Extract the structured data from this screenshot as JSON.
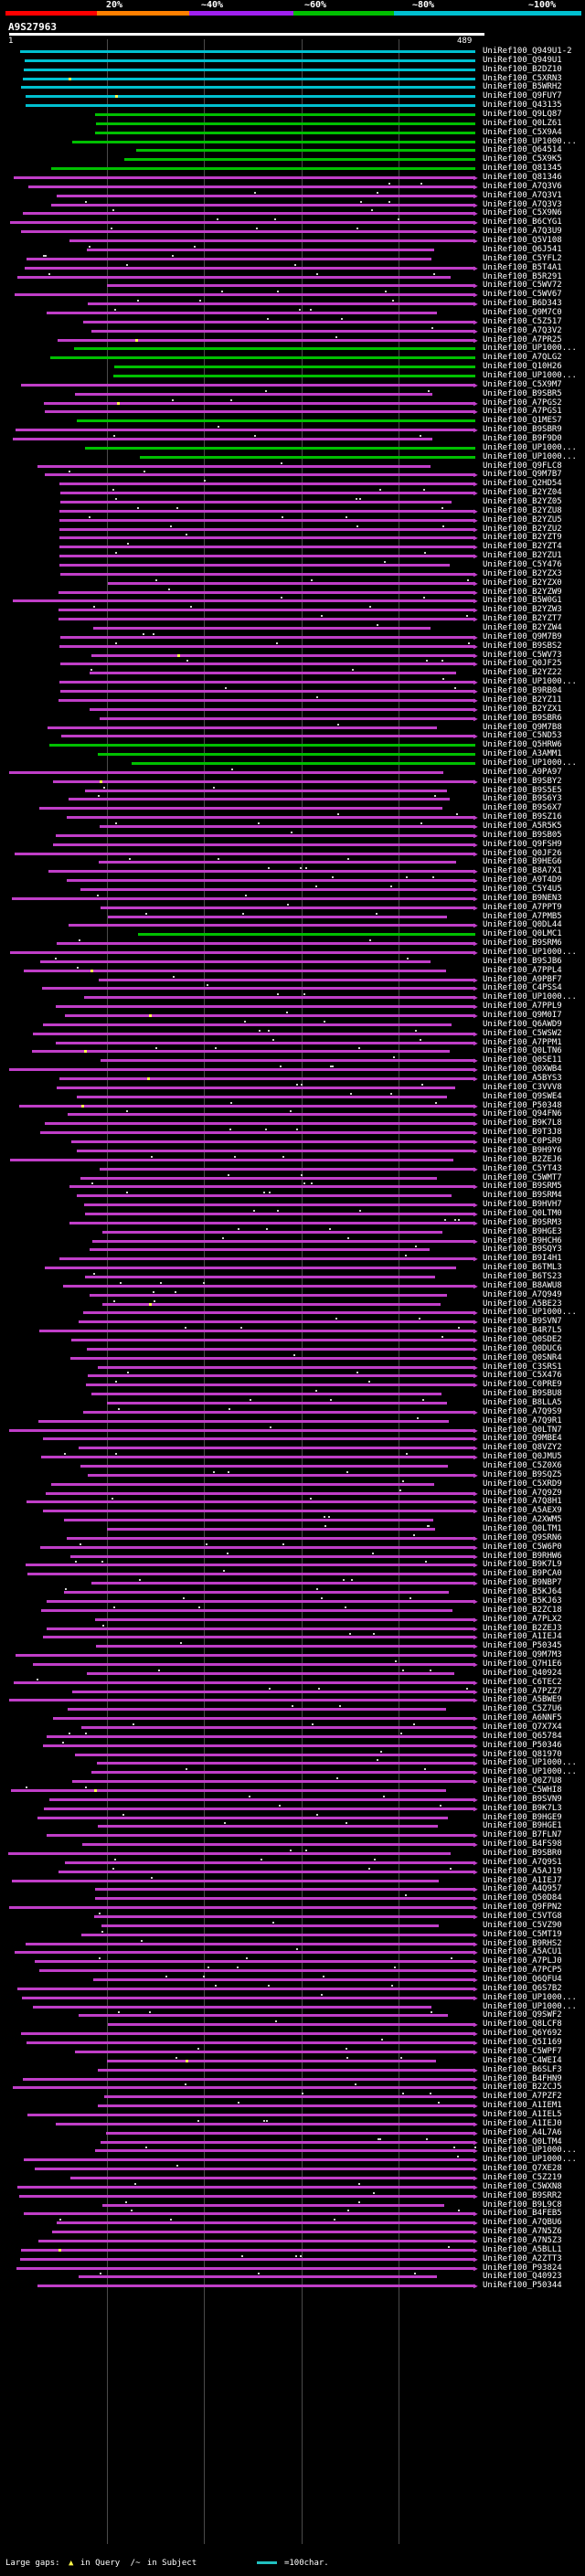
{
  "percent_labels": [
    "20%",
    "~40%",
    "~60%",
    "~80%",
    "~100%"
  ],
  "segment_colors": [
    "#ff0000",
    "#ff8000",
    "#a020f0",
    "#00c000",
    "#00c0d0"
  ],
  "header": {
    "query_id": "A9S27963",
    "scale_start": "1",
    "scale_end": "489"
  },
  "legend": {
    "large_gaps_label": "Large gaps:",
    "query_gap": "in Query",
    "subject_gap": "in Subject",
    "scale_label": "=100char."
  },
  "hits": [
    {
      "id": "UniRef100_Q949U1-2",
      "c": "cyan"
    },
    {
      "id": "UniRef100_Q949U1",
      "c": "cyan"
    },
    {
      "id": "UniRef100_B2DZ10",
      "c": "cyan"
    },
    {
      "id": "UniRef100_C5XRN3",
      "c": "cyan"
    },
    {
      "id": "UniRef100_B5WRH2",
      "c": "cyan"
    },
    {
      "id": "UniRef100_Q9FUY7",
      "c": "cyan"
    },
    {
      "id": "UniRef100_Q43135",
      "c": "cyan"
    },
    {
      "id": "UniRef100_Q9LQ87",
      "c": "green"
    },
    {
      "id": "UniRef100_Q0LZ61",
      "c": "green"
    },
    {
      "id": "UniRef100_C5X9A4",
      "c": "green"
    },
    {
      "id": "UniRef100_UP1000...",
      "c": "green"
    },
    {
      "id": "UniRef100_Q64514",
      "c": "green"
    },
    {
      "id": "UniRef100_C5X9K5",
      "c": "green"
    },
    {
      "id": "UniRef100_Q81345",
      "c": "green"
    },
    {
      "id": "UniRef100_Q81346",
      "c": "magenta"
    },
    {
      "id": "UniRef100_A7Q3V6",
      "c": "magenta"
    },
    {
      "id": "UniRef100_A7Q3V1",
      "c": "magenta"
    },
    {
      "id": "UniRef100_A7Q3V3",
      "c": "magenta"
    },
    {
      "id": "UniRef100_C5X9N6",
      "c": "magenta"
    },
    {
      "id": "UniRef100_B6CYG1",
      "c": "magenta"
    },
    {
      "id": "UniRef100_A7Q3U9",
      "c": "magenta"
    },
    {
      "id": "UniRef100_Q5V108",
      "c": "magenta"
    },
    {
      "id": "UniRef100_Q6J541",
      "c": "magenta"
    },
    {
      "id": "UniRef100_C5YFL2",
      "c": "magenta"
    },
    {
      "id": "UniRef100_B5T4A1",
      "c": "magenta"
    },
    {
      "id": "UniRef100_B5R291",
      "c": "magenta"
    },
    {
      "id": "UniRef100_C5WV72",
      "c": "magenta"
    },
    {
      "id": "UniRef100_C5WV67",
      "c": "magenta"
    },
    {
      "id": "UniRef100_B6D343",
      "c": "magenta"
    },
    {
      "id": "UniRef100_Q9M7C0",
      "c": "magenta"
    },
    {
      "id": "UniRef100_C5Z517",
      "c": "magenta"
    },
    {
      "id": "UniRef100_A7Q3V2",
      "c": "magenta"
    },
    {
      "id": "UniRef100_A7PR25",
      "c": "magenta"
    },
    {
      "id": "UniRef100_UP1000...",
      "c": "green"
    },
    {
      "id": "UniRef100_A7QLG2",
      "c": "green"
    },
    {
      "id": "UniRef100_Q10H26",
      "c": "green"
    },
    {
      "id": "UniRef100_UP1000...",
      "c": "green"
    },
    {
      "id": "UniRef100_C5X9M7",
      "c": "magenta"
    },
    {
      "id": "UniRef100_B9SBR5",
      "c": "magenta"
    },
    {
      "id": "UniRef100_A7PGS2",
      "c": "magenta"
    },
    {
      "id": "UniRef100_A7PGS1",
      "c": "magenta"
    },
    {
      "id": "UniRef100_Q1MES7",
      "c": "green"
    },
    {
      "id": "UniRef100_B9SBR9",
      "c": "magenta"
    },
    {
      "id": "UniRef100_B9F9D0",
      "c": "magenta"
    },
    {
      "id": "UniRef100_UP1000...",
      "c": "green"
    },
    {
      "id": "UniRef100_UP1000...",
      "c": "green"
    },
    {
      "id": "UniRef100_Q9FLC8",
      "c": "magenta"
    },
    {
      "id": "UniRef100_Q9M7B7",
      "c": "magenta"
    },
    {
      "id": "UniRef100_Q2HD54",
      "c": "magenta"
    },
    {
      "id": "UniRef100_B2YZ04",
      "c": "magenta"
    },
    {
      "id": "UniRef100_B2YZ05",
      "c": "magenta"
    },
    {
      "id": "UniRef100_B2YZU8",
      "c": "magenta"
    },
    {
      "id": "UniRef100_B2YZU5",
      "c": "magenta"
    },
    {
      "id": "UniRef100_B2YZU2",
      "c": "magenta"
    },
    {
      "id": "UniRef100_B2YZT9",
      "c": "magenta"
    },
    {
      "id": "UniRef100_B2YZT4",
      "c": "magenta"
    },
    {
      "id": "UniRef100_B2YZU1",
      "c": "magenta"
    },
    {
      "id": "UniRef100_C5Y476",
      "c": "magenta"
    },
    {
      "id": "UniRef100_B2YZX3",
      "c": "magenta"
    },
    {
      "id": "UniRef100_B2YZX0",
      "c": "magenta"
    },
    {
      "id": "UniRef100_B2YZW9",
      "c": "magenta"
    },
    {
      "id": "UniRef100_B5W0G1",
      "c": "magenta"
    },
    {
      "id": "UniRef100_B2YZW3",
      "c": "magenta"
    },
    {
      "id": "UniRef100_B2YZT7",
      "c": "magenta"
    },
    {
      "id": "UniRef100_B2YZW4",
      "c": "magenta"
    },
    {
      "id": "UniRef100_Q9M7B9",
      "c": "magenta"
    },
    {
      "id": "UniRef100_B9SBS2",
      "c": "magenta"
    },
    {
      "id": "UniRef100_C5WV73",
      "c": "magenta"
    },
    {
      "id": "UniRef100_Q0JF25",
      "c": "magenta"
    },
    {
      "id": "UniRef100_B2YZ22",
      "c": "magenta"
    },
    {
      "id": "UniRef100_UP1000...",
      "c": "magenta"
    },
    {
      "id": "UniRef100_B9RB04",
      "c": "magenta"
    },
    {
      "id": "UniRef100_B2YZ11",
      "c": "magenta"
    },
    {
      "id": "UniRef100_B2YZX1",
      "c": "magenta"
    },
    {
      "id": "UniRef100_B9SBR6",
      "c": "magenta"
    },
    {
      "id": "UniRef100_Q9M7B8",
      "c": "magenta"
    },
    {
      "id": "UniRef100_C5ND53",
      "c": "magenta"
    },
    {
      "id": "UniRef100_Q5HRW6",
      "c": "green"
    },
    {
      "id": "UniRef100_A3AMM1",
      "c": "green"
    },
    {
      "id": "UniRef100_UP1000...",
      "c": "green"
    },
    {
      "id": "UniRef100_A9PA97",
      "c": "magenta"
    },
    {
      "id": "UniRef100_B9SBY2",
      "c": "magenta"
    },
    {
      "id": "UniRef100_B9S5E5",
      "c": "magenta"
    },
    {
      "id": "UniRef100_B9S6Y3",
      "c": "magenta"
    },
    {
      "id": "UniRef100_B9S6X7",
      "c": "magenta"
    },
    {
      "id": "UniRef100_B9SZ16",
      "c": "magenta"
    },
    {
      "id": "UniRef100_A5R5K5",
      "c": "magenta"
    },
    {
      "id": "UniRef100_B9SB05",
      "c": "magenta"
    },
    {
      "id": "UniRef100_Q9FSH9",
      "c": "magenta"
    },
    {
      "id": "UniRef100_Q0JF26",
      "c": "magenta"
    },
    {
      "id": "UniRef100_B9HEG6",
      "c": "magenta"
    },
    {
      "id": "UniRef100_B8A7X1",
      "c": "magenta"
    },
    {
      "id": "UniRef100_A9T4D9",
      "c": "magenta"
    },
    {
      "id": "UniRef100_C5Y4U5",
      "c": "magenta"
    },
    {
      "id": "UniRef100_B9NEN3",
      "c": "magenta"
    },
    {
      "id": "UniRef100_A7PPT9",
      "c": "magenta"
    },
    {
      "id": "UniRef100_A7PMB5",
      "c": "magenta"
    },
    {
      "id": "UniRef100_Q0DL44",
      "c": "magenta"
    },
    {
      "id": "UniRef100_Q0LMC1",
      "c": "green"
    },
    {
      "id": "UniRef100_B9SRM6",
      "c": "magenta"
    },
    {
      "id": "UniRef100_UP1000...",
      "c": "magenta"
    },
    {
      "id": "UniRef100_B9SJB6",
      "c": "magenta"
    },
    {
      "id": "UniRef100_A7PPL4",
      "c": "magenta"
    },
    {
      "id": "UniRef100_A9PBF7",
      "c": "magenta"
    },
    {
      "id": "UniRef100_C4PSS4",
      "c": "magenta"
    },
    {
      "id": "UniRef100_UP1000...",
      "c": "magenta"
    },
    {
      "id": "UniRef100_A7PPL9",
      "c": "magenta"
    },
    {
      "id": "UniRef100_Q9M0I7",
      "c": "magenta"
    },
    {
      "id": "UniRef100_Q6AWD9",
      "c": "magenta"
    },
    {
      "id": "UniRef100_C5WSW2",
      "c": "magenta"
    },
    {
      "id": "UniRef100_A7PPM1",
      "c": "magenta"
    },
    {
      "id": "UniRef100_Q0LTN6",
      "c": "magenta"
    },
    {
      "id": "UniRef100_Q0SE11",
      "c": "magenta"
    },
    {
      "id": "UniRef100_Q0XWB4",
      "c": "magenta"
    },
    {
      "id": "UniRef100_A5BYS3",
      "c": "magenta"
    },
    {
      "id": "UniRef100_C3VVV8",
      "c": "magenta"
    },
    {
      "id": "UniRef100_Q9SWE4",
      "c": "magenta"
    },
    {
      "id": "UniRef100_P50348",
      "c": "magenta"
    },
    {
      "id": "UniRef100_Q94FN6",
      "c": "magenta"
    },
    {
      "id": "UniRef100_B9K7L8",
      "c": "magenta"
    },
    {
      "id": "UniRef100_B9T3J8",
      "c": "magenta"
    },
    {
      "id": "UniRef100_C0PSR9",
      "c": "magenta"
    },
    {
      "id": "UniRef100_B9H9Y6",
      "c": "magenta"
    },
    {
      "id": "UniRef100_B2ZEJ6",
      "c": "magenta"
    },
    {
      "id": "UniRef100_C5YT43",
      "c": "magenta"
    },
    {
      "id": "UniRef100_C5WMT7",
      "c": "magenta"
    },
    {
      "id": "UniRef100_B9SRM5",
      "c": "magenta"
    },
    {
      "id": "UniRef100_B9SRM4",
      "c": "magenta"
    },
    {
      "id": "UniRef100_B9HVH7",
      "c": "magenta"
    },
    {
      "id": "UniRef100_Q0LTM0",
      "c": "magenta"
    },
    {
      "id": "UniRef100_B9SRM3",
      "c": "magenta"
    },
    {
      "id": "UniRef100_B9HGE3",
      "c": "magenta"
    },
    {
      "id": "UniRef100_B9HCH6",
      "c": "magenta"
    },
    {
      "id": "UniRef100_B9SQY3",
      "c": "magenta"
    },
    {
      "id": "UniRef100_B9I4H1",
      "c": "magenta"
    },
    {
      "id": "UniRef100_B6TML3",
      "c": "magenta"
    },
    {
      "id": "UniRef100_B6TS23",
      "c": "magenta"
    },
    {
      "id": "UniRef100_B8AWU8",
      "c": "magenta"
    },
    {
      "id": "UniRef100_A7Q949",
      "c": "magenta"
    },
    {
      "id": "UniRef100_A5BE23",
      "c": "magenta"
    },
    {
      "id": "UniRef100_UP1000...",
      "c": "magenta"
    },
    {
      "id": "UniRef100_B9SVN7",
      "c": "magenta"
    },
    {
      "id": "UniRef100_B4R7L5",
      "c": "magenta"
    },
    {
      "id": "UniRef100_Q0SDE2",
      "c": "magenta"
    },
    {
      "id": "UniRef100_Q0DUC6",
      "c": "magenta"
    },
    {
      "id": "UniRef100_Q0SNR4",
      "c": "magenta"
    },
    {
      "id": "UniRef100_C3SRS1",
      "c": "magenta"
    },
    {
      "id": "UniRef100_C5X476",
      "c": "magenta"
    },
    {
      "id": "UniRef100_C0PRE9",
      "c": "magenta"
    },
    {
      "id": "UniRef100_B9SBU8",
      "c": "magenta"
    },
    {
      "id": "UniRef100_B8LLA5",
      "c": "magenta"
    },
    {
      "id": "UniRef100_A7Q9S9",
      "c": "magenta"
    },
    {
      "id": "UniRef100_A7Q9R1",
      "c": "magenta"
    },
    {
      "id": "UniRef100_Q0LTN7",
      "c": "magenta"
    },
    {
      "id": "UniRef100_Q9MBE4",
      "c": "magenta"
    },
    {
      "id": "UniRef100_Q8VZY2",
      "c": "magenta"
    },
    {
      "id": "UniRef100_Q0JMU5",
      "c": "magenta"
    },
    {
      "id": "UniRef100_C5Z0X6",
      "c": "magenta"
    },
    {
      "id": "UniRef100_B9SQZ5",
      "c": "magenta"
    },
    {
      "id": "UniRef100_C5XRD9",
      "c": "magenta"
    },
    {
      "id": "UniRef100_A7Q9Z9",
      "c": "magenta"
    },
    {
      "id": "UniRef100_A7Q8H1",
      "c": "magenta"
    },
    {
      "id": "UniRef100_A5AEX9",
      "c": "magenta"
    },
    {
      "id": "UniRef100_A2XWM5",
      "c": "magenta"
    },
    {
      "id": "UniRef100_Q0LTM1",
      "c": "magenta"
    },
    {
      "id": "UniRef100_Q9SRN6",
      "c": "magenta"
    },
    {
      "id": "UniRef100_C5W6P0",
      "c": "magenta"
    },
    {
      "id": "UniRef100_B9RHW6",
      "c": "magenta"
    },
    {
      "id": "UniRef100_B9K7L9",
      "c": "magenta"
    },
    {
      "id": "UniRef100_B9PCA0",
      "c": "magenta"
    },
    {
      "id": "UniRef100_B9NBP7",
      "c": "magenta"
    },
    {
      "id": "UniRef100_B5KJ64",
      "c": "magenta"
    },
    {
      "id": "UniRef100_B5KJ63",
      "c": "magenta"
    },
    {
      "id": "UniRef100_B2ZC18",
      "c": "magenta"
    },
    {
      "id": "UniRef100_A7PLX2",
      "c": "magenta"
    },
    {
      "id": "UniRef100_B2ZEJ3",
      "c": "magenta"
    },
    {
      "id": "UniRef100_A1IEJ4",
      "c": "magenta"
    },
    {
      "id": "UniRef100_P50345",
      "c": "magenta"
    },
    {
      "id": "UniRef100_Q9M7M3",
      "c": "magenta"
    },
    {
      "id": "UniRef100_Q7H1E6",
      "c": "magenta"
    },
    {
      "id": "UniRef100_Q40924",
      "c": "magenta"
    },
    {
      "id": "UniRef100_C6TEC2",
      "c": "magenta"
    },
    {
      "id": "UniRef100_A7PZZ7",
      "c": "magenta"
    },
    {
      "id": "UniRef100_A5BWE9",
      "c": "magenta"
    },
    {
      "id": "UniRef100_C5Z7U6",
      "c": "magenta"
    },
    {
      "id": "UniRef100_A6NNF5",
      "c": "magenta"
    },
    {
      "id": "UniRef100_Q7X7X4",
      "c": "magenta"
    },
    {
      "id": "UniRef100_Q65784",
      "c": "magenta"
    },
    {
      "id": "UniRef100_P50346",
      "c": "magenta"
    },
    {
      "id": "UniRef100_Q81970",
      "c": "magenta"
    },
    {
      "id": "UniRef100_UP1000...",
      "c": "magenta"
    },
    {
      "id": "UniRef100_UP1000...",
      "c": "magenta"
    },
    {
      "id": "UniRef100_Q0Z7U8",
      "c": "magenta"
    },
    {
      "id": "UniRef100_C5WHI8",
      "c": "magenta"
    },
    {
      "id": "UniRef100_B9SVN9",
      "c": "magenta"
    },
    {
      "id": "UniRef100_B9K7L3",
      "c": "magenta"
    },
    {
      "id": "UniRef100_B9HGE9",
      "c": "magenta"
    },
    {
      "id": "UniRef100_B9HGE1",
      "c": "magenta"
    },
    {
      "id": "UniRef100_B7FLN7",
      "c": "magenta"
    },
    {
      "id": "UniRef100_B4FS98",
      "c": "magenta"
    },
    {
      "id": "UniRef100_B9SBR0",
      "c": "magenta"
    },
    {
      "id": "UniRef100_A7Q9S1",
      "c": "magenta"
    },
    {
      "id": "UniRef100_A5AJ19",
      "c": "magenta"
    },
    {
      "id": "UniRef100_A1IEJ7",
      "c": "magenta"
    },
    {
      "id": "UniRef100_A4Q957",
      "c": "magenta"
    },
    {
      "id": "UniRef100_Q50D84",
      "c": "magenta"
    },
    {
      "id": "UniRef100_Q9FPN2",
      "c": "magenta"
    },
    {
      "id": "UniRef100_C5VTG8",
      "c": "magenta"
    },
    {
      "id": "UniRef100_C5VZ90",
      "c": "magenta"
    },
    {
      "id": "UniRef100_C5MT19",
      "c": "magenta"
    },
    {
      "id": "UniRef100_B9RHS2",
      "c": "magenta"
    },
    {
      "id": "UniRef100_A5ACU1",
      "c": "magenta"
    },
    {
      "id": "UniRef100_A7PLJ0",
      "c": "magenta"
    },
    {
      "id": "UniRef100_A7PCP5",
      "c": "magenta"
    },
    {
      "id": "UniRef100_Q6QFU4",
      "c": "magenta"
    },
    {
      "id": "UniRef100_Q6S7B2",
      "c": "magenta"
    },
    {
      "id": "UniRef100_UP1000...",
      "c": "magenta"
    },
    {
      "id": "UniRef100_UP1000...",
      "c": "magenta"
    },
    {
      "id": "UniRef100_Q9SWF2",
      "c": "magenta"
    },
    {
      "id": "UniRef100_Q8LCF8",
      "c": "magenta"
    },
    {
      "id": "UniRef100_Q6Y692",
      "c": "magenta"
    },
    {
      "id": "UniRef100_Q5I169",
      "c": "magenta"
    },
    {
      "id": "UniRef100_C5WPF7",
      "c": "magenta"
    },
    {
      "id": "UniRef100_C4WEI4",
      "c": "magenta"
    },
    {
      "id": "UniRef100_B6SLF3",
      "c": "magenta"
    },
    {
      "id": "UniRef100_B4FHN9",
      "c": "magenta"
    },
    {
      "id": "UniRef100_B2ZCJ5",
      "c": "magenta"
    },
    {
      "id": "UniRef100_A7PZF2",
      "c": "magenta"
    },
    {
      "id": "UniRef100_A1IEM1",
      "c": "magenta"
    },
    {
      "id": "UniRef100_A1IEL5",
      "c": "magenta"
    },
    {
      "id": "UniRef100_A1IEJ0",
      "c": "magenta"
    },
    {
      "id": "UniRef100_A4L7A6",
      "c": "magenta"
    },
    {
      "id": "UniRef100_Q0LTM4",
      "c": "magenta"
    },
    {
      "id": "UniRef100_UP1000...",
      "c": "magenta"
    },
    {
      "id": "UniRef100_UP1000...",
      "c": "magenta"
    },
    {
      "id": "UniRef100_Q7XE28",
      "c": "magenta"
    },
    {
      "id": "UniRef100_C5Z219",
      "c": "magenta"
    },
    {
      "id": "UniRef100_C5WXN8",
      "c": "magenta"
    },
    {
      "id": "UniRef100_B9SRR2",
      "c": "magenta"
    },
    {
      "id": "UniRef100_B9L9C8",
      "c": "magenta"
    },
    {
      "id": "UniRef100_B4FEB5",
      "c": "magenta"
    },
    {
      "id": "UniRef100_A7QBU6",
      "c": "magenta"
    },
    {
      "id": "UniRef100_A7N5Z6",
      "c": "magenta"
    },
    {
      "id": "UniRef100_A7N5Z3",
      "c": "magenta"
    },
    {
      "id": "UniRef100_A5BLL1",
      "c": "magenta"
    },
    {
      "id": "UniRef100_A2ZTT3",
      "c": "magenta"
    },
    {
      "id": "UniRef100_P93824",
      "c": "magenta"
    },
    {
      "id": "UniRef100_Q40923",
      "c": "magenta"
    },
    {
      "id": "UniRef100_P50344",
      "c": "magenta"
    }
  ]
}
